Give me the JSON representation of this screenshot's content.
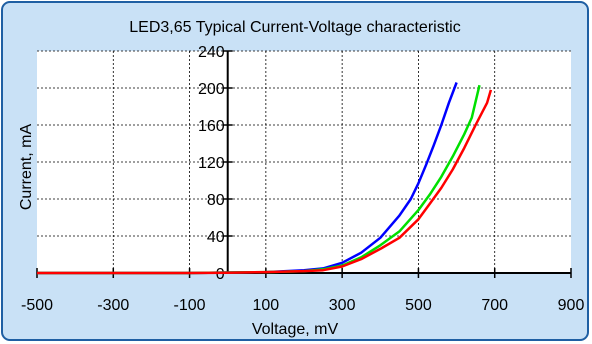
{
  "chart_data": {
    "type": "line",
    "title": "LED3,65 Typical Current-Voltage characteristic",
    "xlabel": "Voltage, mV",
    "ylabel": "Current, mA",
    "xlim": [
      -500,
      900
    ],
    "ylim": [
      0,
      240
    ],
    "xticks": [
      -500,
      -300,
      -100,
      100,
      300,
      500,
      700,
      900
    ],
    "yticks": [
      0,
      40,
      80,
      120,
      160,
      200,
      240
    ],
    "grid": true,
    "colors": {
      "background": "#c9e1f6",
      "plot_area": "#ffffff",
      "border": "#1f5fa3"
    },
    "series": [
      {
        "color": "#0000ff",
        "x": [
          -500,
          -100,
          0,
          100,
          200,
          250,
          300,
          350,
          400,
          450,
          480,
          500,
          520,
          540,
          560,
          580,
          600
        ],
        "y": [
          0,
          0,
          0.5,
          1,
          3,
          5,
          11,
          22,
          38,
          62,
          80,
          97,
          117,
          138,
          160,
          184,
          206
        ]
      },
      {
        "color": "#00e000",
        "x": [
          -500,
          -100,
          0,
          100,
          200,
          250,
          300,
          350,
          400,
          450,
          500,
          530,
          560,
          590,
          620,
          640,
          660
        ],
        "y": [
          0,
          0,
          0.5,
          1,
          2,
          4,
          8,
          17,
          30,
          45,
          68,
          85,
          104,
          126,
          150,
          168,
          203
        ]
      },
      {
        "color": "#ff0000",
        "x": [
          -500,
          -100,
          0,
          100,
          200,
          250,
          300,
          350,
          400,
          450,
          500,
          530,
          560,
          590,
          620,
          650,
          680,
          690
        ],
        "y": [
          0,
          0,
          0.3,
          1,
          2,
          3,
          7,
          15,
          26,
          38,
          58,
          75,
          92,
          112,
          135,
          160,
          184,
          198
        ]
      }
    ]
  }
}
